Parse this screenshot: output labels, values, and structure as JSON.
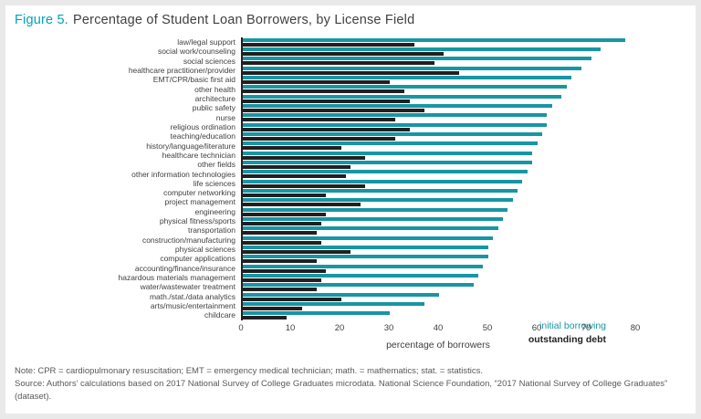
{
  "figure": {
    "label": "Figure 5.",
    "title": "Percentage of Student Loan Borrowers, by License Field"
  },
  "chart_data": {
    "type": "bar",
    "orientation": "horizontal",
    "title": "Figure 5. Percentage of Student Loan Borrowers, by License Field",
    "xlabel": "percentage of borrowers",
    "xlim": [
      0,
      80
    ],
    "xticks": [
      0,
      10,
      20,
      30,
      40,
      50,
      60,
      70,
      80
    ],
    "grid": false,
    "legend_position": "bottom-right",
    "categories": [
      "law/legal support",
      "social work/counseling",
      "social sciences",
      "healthcare practitioner/provider",
      "EMT/CPR/basic first aid",
      "other health",
      "architecture",
      "public safety",
      "nurse",
      "religious ordination",
      "teaching/education",
      "history/language/literature",
      "healthcare technician",
      "other fields",
      "other information technologies",
      "life sciences",
      "computer networking",
      "project management",
      "engineering",
      "physical fitness/sports",
      "transportation",
      "construction/manufacturing",
      "physical sciences",
      "computer applications",
      "accounting/finance/insurance",
      "hazardous materials management",
      "water/wastewater treatment",
      "math./stat./data analytics",
      "arts/music/entertainment",
      "childcare"
    ],
    "series": [
      {
        "name": "initial borrowing",
        "color": "#1796a4",
        "values": [
          78,
          73,
          71,
          69,
          67,
          66,
          65,
          63,
          62,
          62,
          61,
          60,
          59,
          59,
          58,
          57,
          56,
          55,
          54,
          53,
          52,
          51,
          50,
          50,
          49,
          48,
          47,
          40,
          37,
          30
        ]
      },
      {
        "name": "outstanding debt",
        "color": "#231f20",
        "values": [
          35,
          41,
          39,
          44,
          30,
          33,
          34,
          37,
          31,
          34,
          31,
          20,
          25,
          22,
          21,
          25,
          17,
          24,
          17,
          16,
          15,
          16,
          22,
          15,
          17,
          16,
          15,
          20,
          12,
          9
        ]
      }
    ]
  },
  "notes": {
    "note": "Note: CPR = cardiopulmonary resuscitation; EMT = emergency medical technician; math. = mathematics; stat. = statistics.",
    "source": "Source: Authors’ calculations based on 2017 National Survey of College Graduates microdata. National Science Foundation, “2017 National Survey of College Graduates” (dataset)."
  }
}
